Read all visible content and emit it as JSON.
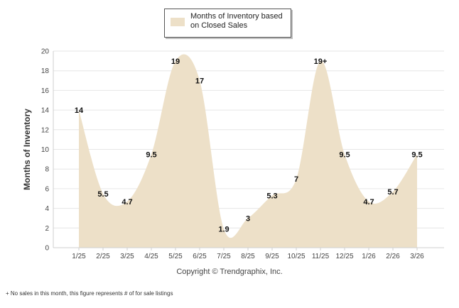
{
  "legend": {
    "label": "Months of Inventory based on Closed Sales",
    "color": "#ede0c8"
  },
  "chart_data": {
    "type": "area",
    "title": "",
    "xlabel": "",
    "ylabel": "Months of Inventory",
    "ylim": [
      0,
      20
    ],
    "yticks": [
      0,
      2,
      4,
      6,
      8,
      10,
      12,
      14,
      16,
      18,
      20
    ],
    "grid": true,
    "categories": [
      "1/25",
      "2/25",
      "3/25",
      "4/25",
      "5/25",
      "6/25",
      "7/25",
      "8/25",
      "9/25",
      "10/25",
      "11/25",
      "12/25",
      "1/26",
      "2/26",
      "3/26"
    ],
    "series": [
      {
        "name": "Months of Inventory based on Closed Sales",
        "values": [
          14,
          5.5,
          4.7,
          9.5,
          19,
          17,
          1.9,
          3,
          5.3,
          7,
          19,
          9.5,
          4.7,
          5.7,
          9.5
        ],
        "labels": [
          "14",
          "5.5",
          "4.7",
          "9.5",
          "19",
          "17",
          "1.9",
          "3",
          "5.3",
          "7",
          "19+",
          "9.5",
          "4.7",
          "5.7",
          "9.5"
        ]
      }
    ]
  },
  "footer": {
    "copyright": "Copyright © Trendgraphix, Inc.",
    "footnote": "+ No sales in this month, this figure represents # of for sale listings"
  }
}
